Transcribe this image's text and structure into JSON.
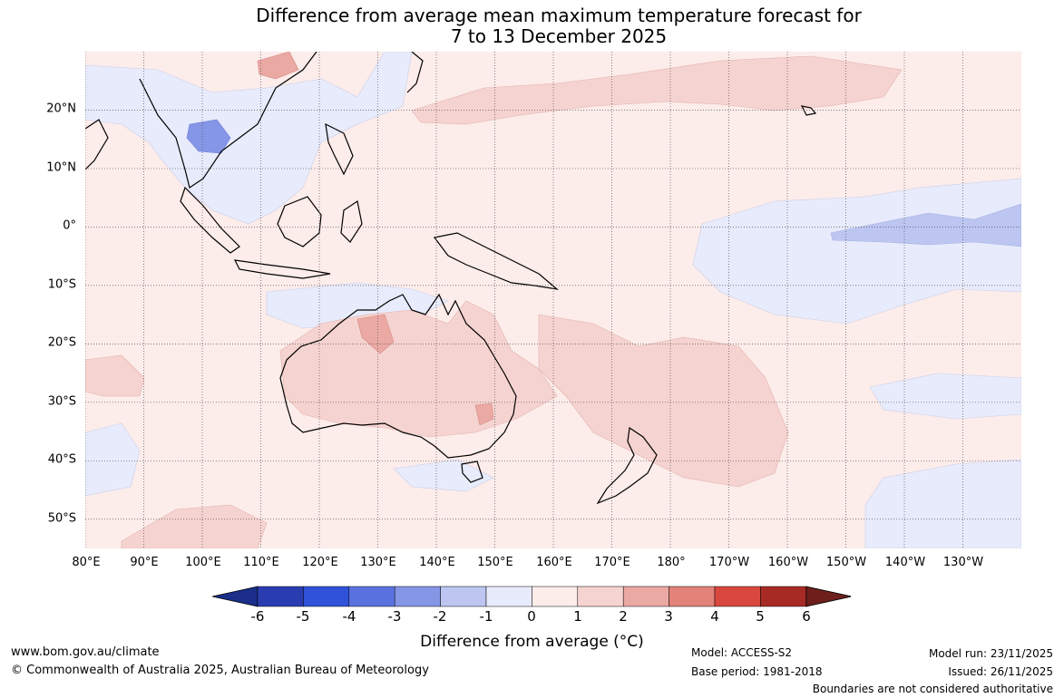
{
  "header": {
    "title_line1": "Difference from average mean maximum temperature forecast for",
    "title_line2": "7 to 13 December 2025"
  },
  "map": {
    "latitude_labels": [
      "20°N",
      "10°N",
      "0°",
      "10°S",
      "20°S",
      "30°S",
      "40°S",
      "50°S"
    ],
    "longitude_labels": [
      "80°E",
      "90°E",
      "100°E",
      "110°E",
      "120°E",
      "130°E",
      "140°E",
      "150°E",
      "160°E",
      "170°E",
      "180°",
      "170°W",
      "160°W",
      "150°W",
      "140°W",
      "130°W"
    ],
    "latitude_values": [
      20,
      10,
      0,
      -10,
      -20,
      -30,
      -40,
      -50
    ],
    "longitude_values": [
      80,
      90,
      100,
      110,
      120,
      130,
      140,
      150,
      160,
      170,
      180,
      190,
      200,
      210,
      220,
      230
    ],
    "lon_range": [
      80,
      240
    ],
    "lat_range": [
      -55,
      30
    ]
  },
  "legend": {
    "ticks": [
      "-6",
      "-5",
      "-4",
      "-3",
      "-2",
      "-1",
      "0",
      "1",
      "2",
      "3",
      "4",
      "5",
      "6"
    ],
    "colors": [
      "#1a2e8a",
      "#2a3db0",
      "#2f52d8",
      "#5a72e0",
      "#8596e6",
      "#bcc6f1",
      "#e8ebfb",
      "#fcecea",
      "#f5d3d0",
      "#eba9a3",
      "#e38278",
      "#d9483e",
      "#a82a25",
      "#6e1f1c"
    ],
    "label": "Difference from average (°C)"
  },
  "footer": {
    "website": "www.bom.gov.au/climate",
    "copyright": "© Commonwealth of Australia 2025, Australian Bureau of Meteorology",
    "model": "Model: ACCESS-S2",
    "base_period": "Base period: 1981-2018",
    "model_run": "Model run: 23/11/2025",
    "issued": "Issued: 26/11/2025",
    "disclaimer": "Boundaries are not considered authoritative"
  }
}
